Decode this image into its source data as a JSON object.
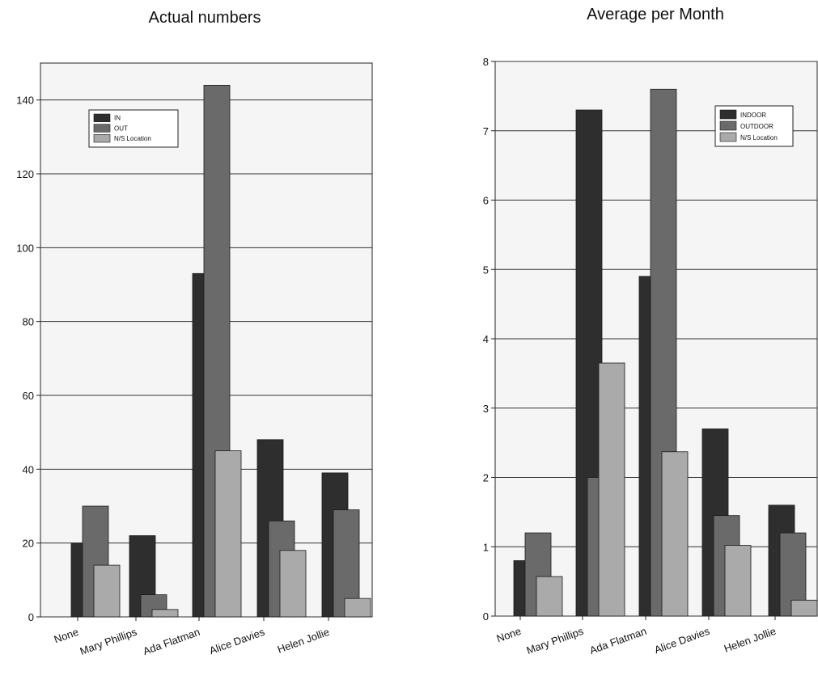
{
  "chart_data": [
    {
      "type": "bar",
      "title": "Actual numbers",
      "xlabel": "",
      "ylabel": "",
      "ylim": [
        0,
        150
      ],
      "yticks": [
        0,
        20,
        40,
        60,
        80,
        100,
        120,
        140
      ],
      "grid": true,
      "legend_position": "top-left",
      "categories": [
        "None",
        "Mary Phillips",
        "Ada Flatman",
        "Alice Davies",
        "Helen Jollie"
      ],
      "series": [
        {
          "name": "IN",
          "color": "#2e2e2e",
          "values": [
            20,
            22,
            93,
            48,
            39
          ]
        },
        {
          "name": "OUT",
          "color": "#6a6a6a",
          "values": [
            30,
            6,
            144,
            26,
            29
          ]
        },
        {
          "name": "N/S Location",
          "color": "#aaaaaa",
          "values": [
            14,
            2,
            45,
            18,
            5
          ]
        }
      ]
    },
    {
      "type": "bar",
      "title": "Average per Month",
      "xlabel": "",
      "ylabel": "",
      "ylim": [
        0,
        8
      ],
      "yticks": [
        0,
        1,
        2,
        3,
        4,
        5,
        6,
        7,
        8
      ],
      "grid": true,
      "legend_position": "top-right",
      "categories": [
        "None",
        "Mary Phillips",
        "Ada Flatman",
        "Alice Davies",
        "Helen Jollie"
      ],
      "series": [
        {
          "name": "INDOOR",
          "color": "#2e2e2e",
          "values": [
            0.8,
            7.3,
            4.9,
            2.7,
            1.6
          ]
        },
        {
          "name": "OUTDOOR",
          "color": "#6a6a6a",
          "values": [
            1.2,
            2.0,
            7.6,
            1.45,
            1.2
          ]
        },
        {
          "name": "N/S Location",
          "color": "#aaaaaa",
          "values": [
            0.57,
            3.65,
            2.37,
            1.02,
            0.23
          ]
        }
      ]
    }
  ]
}
